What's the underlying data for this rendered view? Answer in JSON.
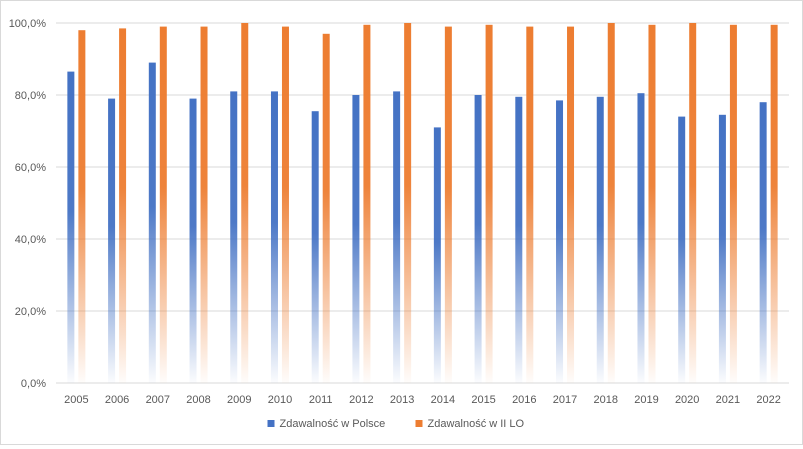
{
  "chart_data": {
    "type": "bar",
    "title": "",
    "xlabel": "",
    "ylabel": "",
    "categories": [
      "2005",
      "2006",
      "2007",
      "2008",
      "2009",
      "2010",
      "2011",
      "2012",
      "2013",
      "2014",
      "2015",
      "2016",
      "2017",
      "2018",
      "2019",
      "2020",
      "2021",
      "2022"
    ],
    "series": [
      {
        "name": "Zdawalność w Polsce",
        "color": "#4472c4",
        "values": [
          86.5,
          79.0,
          89.0,
          79.0,
          81.0,
          81.0,
          75.5,
          80.0,
          81.0,
          71.0,
          80.0,
          79.5,
          78.5,
          79.5,
          80.5,
          74.0,
          74.5,
          78.0
        ]
      },
      {
        "name": "Zdawalność w II LO",
        "color": "#ed7d31",
        "values": [
          98.0,
          98.5,
          99.0,
          99.0,
          100.0,
          99.0,
          97.0,
          99.5,
          100.0,
          99.0,
          99.5,
          99.0,
          99.0,
          100.0,
          99.5,
          100.0,
          99.5,
          99.5
        ]
      }
    ],
    "ylim": [
      0,
      100
    ],
    "yticks": [
      "0,0%",
      "20,0%",
      "40,0%",
      "60,0%",
      "80,0%",
      "100,0%"
    ],
    "ytick_values": [
      0,
      20,
      40,
      60,
      80,
      100
    ],
    "grid": true,
    "legend_position": "bottom",
    "gradient_fill": true
  }
}
